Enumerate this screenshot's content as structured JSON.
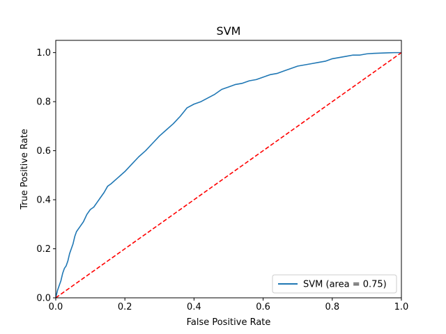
{
  "chart_data": {
    "type": "line",
    "title": "SVM",
    "xlabel": "False Positive Rate",
    "ylabel": "True Positive Rate",
    "xlim": [
      0.0,
      1.0
    ],
    "ylim": [
      0.0,
      1.05
    ],
    "x_ticks": [
      0.0,
      0.2,
      0.4,
      0.6,
      0.8,
      1.0
    ],
    "y_ticks": [
      0.0,
      0.2,
      0.4,
      0.6,
      0.8,
      1.0
    ],
    "x_tick_labels": [
      "0.0",
      "0.2",
      "0.4",
      "0.6",
      "0.8",
      "1.0"
    ],
    "y_tick_labels": [
      "0.0",
      "0.2",
      "0.4",
      "0.6",
      "0.8",
      "1.0"
    ],
    "grid": false,
    "legend": {
      "location": "lower right",
      "entries": [
        "SVM (area = 0.75)"
      ]
    },
    "series": [
      {
        "name": "SVM (area = 0.75)",
        "color": "#1f77b4",
        "style": "solid",
        "x": [
          0.0,
          0.005,
          0.01,
          0.015,
          0.02,
          0.025,
          0.03,
          0.035,
          0.04,
          0.045,
          0.05,
          0.055,
          0.06,
          0.07,
          0.08,
          0.09,
          0.1,
          0.11,
          0.12,
          0.13,
          0.14,
          0.15,
          0.16,
          0.18,
          0.2,
          0.22,
          0.24,
          0.26,
          0.28,
          0.3,
          0.32,
          0.34,
          0.36,
          0.38,
          0.4,
          0.42,
          0.44,
          0.46,
          0.48,
          0.5,
          0.52,
          0.54,
          0.56,
          0.58,
          0.6,
          0.62,
          0.64,
          0.66,
          0.68,
          0.7,
          0.72,
          0.74,
          0.76,
          0.78,
          0.8,
          0.82,
          0.84,
          0.86,
          0.88,
          0.9,
          0.92,
          0.94,
          0.96,
          0.98,
          1.0
        ],
        "y": [
          0.0,
          0.03,
          0.05,
          0.07,
          0.1,
          0.12,
          0.13,
          0.15,
          0.18,
          0.2,
          0.22,
          0.25,
          0.27,
          0.29,
          0.31,
          0.34,
          0.36,
          0.37,
          0.39,
          0.41,
          0.43,
          0.455,
          0.465,
          0.49,
          0.515,
          0.545,
          0.575,
          0.6,
          0.63,
          0.66,
          0.685,
          0.71,
          0.74,
          0.775,
          0.79,
          0.8,
          0.815,
          0.83,
          0.85,
          0.86,
          0.87,
          0.875,
          0.885,
          0.89,
          0.9,
          0.91,
          0.915,
          0.925,
          0.935,
          0.945,
          0.95,
          0.955,
          0.96,
          0.965,
          0.975,
          0.98,
          0.985,
          0.99,
          0.99,
          0.995,
          0.997,
          0.998,
          0.999,
          1.0,
          1.0
        ]
      },
      {
        "name": "",
        "color": "#ff0000",
        "style": "dashed",
        "x": [
          0.0,
          1.0
        ],
        "y": [
          0.0,
          1.0
        ]
      }
    ]
  }
}
